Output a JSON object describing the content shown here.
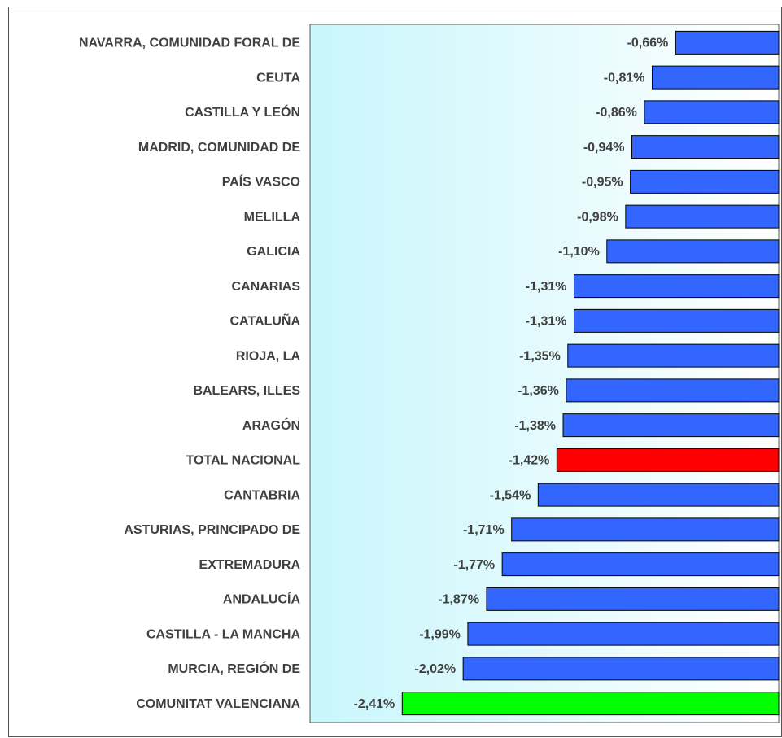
{
  "chart_data": {
    "type": "bar",
    "orientation": "horizontal",
    "categories": [
      "NAVARRA, COMUNIDAD FORAL DE",
      "CEUTA",
      "CASTILLA Y LEÓN",
      "MADRID, COMUNIDAD DE",
      "PAÍS VASCO",
      "MELILLA",
      "GALICIA",
      "CANARIAS",
      "CATALUÑA",
      "RIOJA, LA",
      "BALEARS, ILLES",
      "ARAGÓN",
      "TOTAL NACIONAL",
      "CANTABRIA",
      "ASTURIAS, PRINCIPADO DE",
      "EXTREMADURA",
      "ANDALUCÍA",
      "CASTILLA - LA MANCHA",
      "MURCIA, REGIÓN DE",
      "COMUNITAT VALENCIANA"
    ],
    "values": [
      -0.66,
      -0.81,
      -0.86,
      -0.94,
      -0.95,
      -0.98,
      -1.1,
      -1.31,
      -1.31,
      -1.35,
      -1.36,
      -1.38,
      -1.42,
      -1.54,
      -1.71,
      -1.77,
      -1.87,
      -1.99,
      -2.02,
      -2.41
    ],
    "value_labels": [
      "-0,66%",
      "-0,81%",
      "-0,86%",
      "-0,94%",
      "-0,95%",
      "-0,98%",
      "-1,10%",
      "-1,31%",
      "-1,31%",
      "-1,35%",
      "-1,36%",
      "-1,38%",
      "-1,42%",
      "-1,54%",
      "-1,71%",
      "-1,77%",
      "-1,87%",
      "-1,99%",
      "-2,02%",
      "-2,41%"
    ],
    "colors": [
      "#3366ff",
      "#3366ff",
      "#3366ff",
      "#3366ff",
      "#3366ff",
      "#3366ff",
      "#3366ff",
      "#3366ff",
      "#3366ff",
      "#3366ff",
      "#3366ff",
      "#3366ff",
      "#ff0000",
      "#3366ff",
      "#3366ff",
      "#3366ff",
      "#3366ff",
      "#3366ff",
      "#3366ff",
      "#00ff00"
    ],
    "xlim": [
      -3,
      0
    ]
  }
}
